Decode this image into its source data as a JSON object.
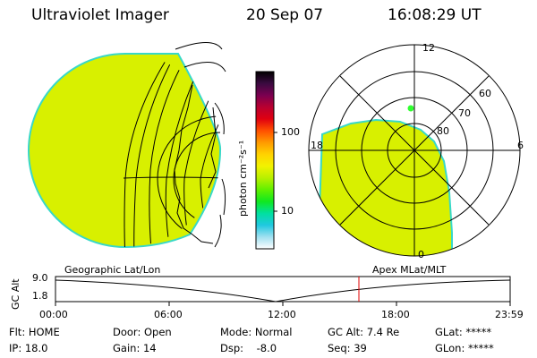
{
  "header": {
    "instrument": "Ultraviolet Imager",
    "date": "20 Sep 07",
    "time": "16:08:29 UT"
  },
  "colors": {
    "aurora_fill": "#d8f000",
    "aurora_edge": "#38d8c8",
    "spot": "#30ff30",
    "marker": "#e00000"
  },
  "colorbar": {
    "label": "photon cm⁻²s⁻¹",
    "ticks": [
      "100",
      "10"
    ],
    "scale": "log",
    "stops": [
      "#000000",
      "#3a0a40",
      "#7a0050",
      "#b80030",
      "#e00010",
      "#ff5000",
      "#ff9a00",
      "#ffd200",
      "#f2f200",
      "#b8f000",
      "#60f000",
      "#10e820",
      "#00e0a0",
      "#20c8e0",
      "#a0e0f0",
      "#ffffff"
    ]
  },
  "geo_map": {
    "label": "Geographic Lat/Lon"
  },
  "polar_plot": {
    "label": "Apex MLat/MLT",
    "mlt_labels": {
      "top": "12",
      "left": "18",
      "right": "6",
      "bottom": "0"
    },
    "lat_labels": [
      "60",
      "70",
      "80"
    ]
  },
  "altitude_plot": {
    "ylabel": "GC Alt",
    "y_ticks": [
      "9.0",
      "1.8"
    ],
    "x_ticks": [
      "00:00",
      "06:00",
      "12:00",
      "18:00",
      "23:59"
    ],
    "current_marker": "16:08"
  },
  "status": {
    "flt": "Flt: HOME",
    "ip": "IP: 18.0",
    "door": "Door: Open",
    "gain": "Gain: 14",
    "mode": "Mode: Normal",
    "dsp": "Dsp:    -8.0",
    "gc_alt": "GC Alt: 7.4 Re",
    "seq": "Seq: 39",
    "glat": "GLat: *****",
    "glon": "GLon: *****"
  }
}
